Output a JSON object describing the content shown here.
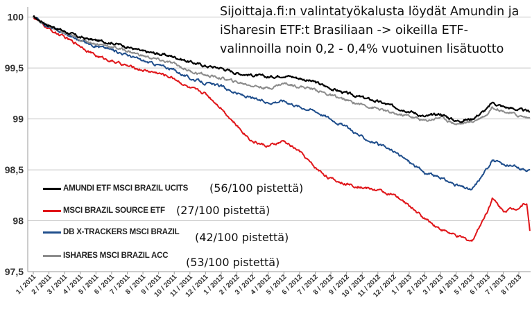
{
  "chart_data": {
    "type": "line",
    "title": "",
    "xlabel": "",
    "ylabel": "",
    "ylim": [
      97.5,
      100.1
    ],
    "y_ticks": [
      "97,5",
      "98",
      "98,5",
      "99",
      "99,5",
      "100"
    ],
    "y_tick_values": [
      97.5,
      98,
      98.5,
      99,
      99.5,
      100
    ],
    "grid": "horizontal",
    "legend_placement": "left-center",
    "x_ticks": [
      "1 / 2011",
      "2 / 2011",
      "3 / 2011",
      "4 / 2011",
      "5 / 2011",
      "6 / 2011",
      "7 / 2011",
      "8 / 2011",
      "9 / 2011",
      "10 / 2011",
      "11 / 2011",
      "12 / 2011",
      "1 / 2012",
      "2 / 2012",
      "3 / 2012",
      "4 / 2012",
      "5 / 2012",
      "6 / 2012",
      "7 / 2012",
      "8 / 2012",
      "9 / 2012",
      "10 / 2012",
      "11 / 2012",
      "12 / 2012",
      "1 / 2013",
      "2 / 2013",
      "3 / 2013",
      "4 / 2013",
      "5 / 2013",
      "6 / 2013",
      "7 / 2013",
      "8 / 2013"
    ],
    "annotation": "Sijoittaja.fi:n valintatyökalusta löydät Amundin ja iSharesin ETF:t Brasiliaan -> oikeilla ETF-valinnoilla noin 0,2 - 0,4% vuotuinen lisätuotto",
    "series": [
      {
        "name": "AMUNDI ETF MSCI BRAZIL UCITS",
        "score": "(56/100 pistettä)",
        "color": "#000000",
        "x": [
          0,
          1,
          2,
          3,
          4,
          5,
          6,
          7,
          8,
          9,
          10,
          11,
          12,
          13,
          14,
          15,
          16,
          17,
          18,
          19,
          20,
          21,
          22,
          23,
          24,
          25,
          26,
          27,
          28,
          29,
          29.3,
          30,
          31,
          31.7
        ],
        "values": [
          100.0,
          99.92,
          99.86,
          99.8,
          99.77,
          99.75,
          99.71,
          99.66,
          99.64,
          99.61,
          99.56,
          99.52,
          99.5,
          99.45,
          99.43,
          99.41,
          99.43,
          99.4,
          99.36,
          99.3,
          99.25,
          99.21,
          99.17,
          99.12,
          99.08,
          99.02,
          99.05,
          98.98,
          99.0,
          99.1,
          99.16,
          99.12,
          99.09,
          99.07
        ]
      },
      {
        "name": "MSCI BRAZIL SOURCE ETF",
        "score": "(27/100 pistettä)",
        "color": "#e0161a",
        "x": [
          0,
          1,
          2,
          3,
          4,
          5,
          6,
          7,
          8,
          9,
          10,
          11,
          12,
          13,
          14,
          15,
          16,
          17,
          18,
          19,
          20,
          21,
          22,
          23,
          24,
          25,
          26,
          27,
          28,
          29,
          29.3,
          30,
          31,
          31.5,
          31.7
        ],
        "values": [
          100.0,
          99.88,
          99.8,
          99.72,
          99.62,
          99.57,
          99.52,
          99.48,
          99.45,
          99.4,
          99.3,
          99.25,
          99.11,
          98.93,
          98.78,
          98.73,
          98.78,
          98.68,
          98.52,
          98.41,
          98.36,
          98.33,
          98.3,
          98.25,
          98.15,
          98.02,
          97.92,
          97.85,
          97.8,
          98.1,
          98.22,
          98.1,
          98.13,
          98.18,
          97.9
        ]
      },
      {
        "name": "DB X-TRACKERS MSCI BRAZIL",
        "score": "(42/100 pistettä)",
        "color": "#1f4e8c",
        "x": [
          0,
          1,
          2,
          3,
          4,
          5,
          6,
          7,
          8,
          9,
          10,
          11,
          12,
          13,
          14,
          15,
          16,
          17,
          18,
          19,
          20,
          21,
          22,
          23,
          24,
          25,
          26,
          27,
          28,
          29,
          29.3,
          30,
          31,
          31.7
        ],
        "values": [
          100.0,
          99.9,
          99.84,
          99.77,
          99.72,
          99.68,
          99.63,
          99.57,
          99.53,
          99.48,
          99.4,
          99.35,
          99.32,
          99.25,
          99.2,
          99.16,
          99.18,
          99.12,
          99.08,
          99.0,
          98.92,
          98.82,
          98.75,
          98.68,
          98.58,
          98.47,
          98.42,
          98.35,
          98.3,
          98.52,
          98.6,
          98.55,
          98.52,
          98.5
        ]
      },
      {
        "name": "ISHARES MSCI BRAZIL  ACC",
        "score": "(53/100 pistettä)",
        "color": "#8c8c8c",
        "x": [
          0,
          1,
          2,
          3,
          4,
          5,
          6,
          7,
          8,
          9,
          10,
          11,
          12,
          13,
          14,
          15,
          16,
          17,
          18,
          19,
          20,
          21,
          22,
          23,
          24,
          25,
          26,
          27,
          28,
          29,
          29.3,
          30,
          31,
          31.7
        ],
        "values": [
          100.0,
          99.91,
          99.84,
          99.78,
          99.74,
          99.71,
          99.67,
          99.62,
          99.58,
          99.54,
          99.47,
          99.43,
          99.4,
          99.36,
          99.33,
          99.3,
          99.35,
          99.32,
          99.29,
          99.23,
          99.18,
          99.14,
          99.1,
          99.05,
          99.03,
          98.98,
          99.02,
          98.95,
          98.97,
          99.05,
          99.12,
          99.08,
          99.03,
          99.01
        ]
      }
    ]
  }
}
